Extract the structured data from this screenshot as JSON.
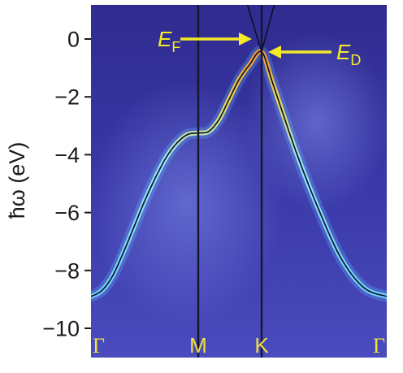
{
  "chart_data": {
    "type": "line",
    "title": "",
    "xlabel": "",
    "ylabel": "ħω (eV)",
    "ylim": [
      -11.0,
      1.2
    ],
    "yticks": [
      "0",
      "−2",
      "−4",
      "−6",
      "−8",
      "−10"
    ],
    "ytick_values": [
      0,
      -2,
      -4,
      -6,
      -8,
      -10
    ],
    "x_path": [
      "Γ",
      "M",
      "K",
      "Γ"
    ],
    "x_path_positions": [
      0,
      1,
      1.62,
      3.0
    ],
    "series": [
      {
        "x": [
          0.0,
          0.1,
          0.2,
          0.3,
          0.4,
          0.5,
          0.6,
          0.7,
          0.8,
          0.9,
          1.0,
          1.1,
          1.2,
          1.3,
          1.4,
          1.5,
          1.62,
          1.75,
          2.0,
          2.25,
          2.5,
          2.75,
          3.0
        ],
        "values": [
          -8.9,
          -8.7,
          -8.2,
          -7.4,
          -6.5,
          -5.6,
          -4.8,
          -4.1,
          -3.6,
          -3.3,
          -3.25,
          -3.2,
          -2.8,
          -2.1,
          -1.4,
          -0.9,
          -0.45,
          -1.6,
          -3.9,
          -5.9,
          -7.6,
          -8.6,
          -8.9
        ]
      }
    ],
    "dirac_cone_lines": [
      {
        "x": [
          1.48,
          1.62,
          1.76
        ],
        "values": [
          1.2,
          -0.45,
          1.2
        ]
      }
    ],
    "annotations": [
      {
        "text": "E",
        "sub": "F",
        "value": 0.0
      },
      {
        "text": "E",
        "sub": "D",
        "value": -0.45
      }
    ],
    "grid": false,
    "colors": {
      "background": "#3b37a6",
      "band_low": "#5ad2ff",
      "band_high": "#ffe84a",
      "annotation": "#f5ea2a",
      "kpoint_label": "#f2e23a"
    }
  }
}
